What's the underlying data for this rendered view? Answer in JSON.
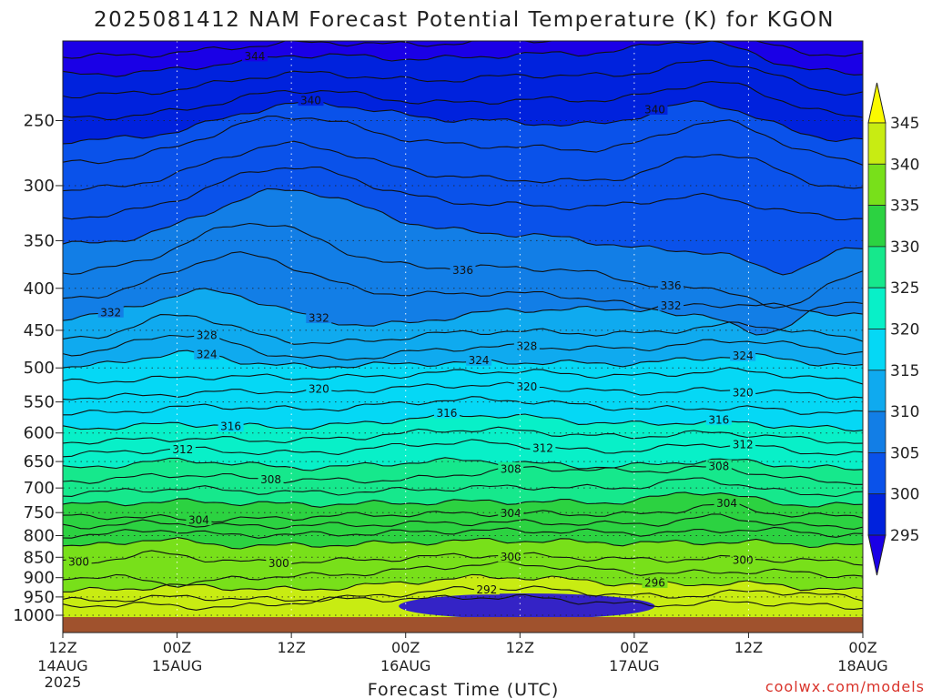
{
  "chart_data": {
    "type": "heatmap",
    "title": "2025081412 NAM Forecast Potential Temperature (K) for KGON",
    "xlabel": "Forecast Time (UTC)",
    "credit": "coolwx.com/models",
    "y_scale": "log-pressure",
    "y_ticks": [
      "250",
      "300",
      "350",
      "400",
      "450",
      "500",
      "550",
      "600",
      "650",
      "700",
      "750",
      "800",
      "850",
      "900",
      "950",
      "1000"
    ],
    "y_range": [
      200,
      1000
    ],
    "x_ticks": [
      {
        "time": "12Z",
        "date": "14AUG",
        "year": "2025"
      },
      {
        "time": "00Z",
        "date": "15AUG",
        "year": ""
      },
      {
        "time": "12Z",
        "date": "",
        "year": ""
      },
      {
        "time": "00Z",
        "date": "16AUG",
        "year": ""
      },
      {
        "time": "12Z",
        "date": "",
        "year": ""
      },
      {
        "time": "00Z",
        "date": "17AUG",
        "year": ""
      },
      {
        "time": "12Z",
        "date": "",
        "year": ""
      },
      {
        "time": "00Z",
        "date": "18AUG",
        "year": ""
      }
    ],
    "colorbar": {
      "levels": [
        295,
        300,
        305,
        310,
        315,
        320,
        325,
        330,
        335,
        340,
        345
      ],
      "colors": [
        "#1a00e6",
        "#0022dd",
        "#0a52ea",
        "#127ee6",
        "#0faaef",
        "#05d8f5",
        "#08f0c8",
        "#16e88c",
        "#2cd241",
        "#78e01a",
        "#c8ec12",
        "#fafa00"
      ]
    },
    "grid": "dotted",
    "contour_levels": [
      {
        "value": "292",
        "labels": [
          {
            "text": "292",
            "pos": 0.53
          }
        ]
      },
      {
        "value": "296",
        "labels": [
          {
            "text": "296",
            "pos": 0.74
          }
        ]
      },
      {
        "value": "300",
        "labels": [
          {
            "text": "300",
            "pos": 0.02
          },
          {
            "text": "300",
            "pos": 0.27
          },
          {
            "text": "300",
            "pos": 0.56
          },
          {
            "text": "300",
            "pos": 0.85
          }
        ]
      },
      {
        "value": "304",
        "labels": [
          {
            "text": "304",
            "pos": 0.17
          },
          {
            "text": "304",
            "pos": 0.56
          },
          {
            "text": "304",
            "pos": 0.83
          }
        ]
      },
      {
        "value": "308",
        "labels": [
          {
            "text": "308",
            "pos": 0.26
          },
          {
            "text": "308",
            "pos": 0.56
          },
          {
            "text": "308",
            "pos": 0.82
          }
        ]
      },
      {
        "value": "312",
        "labels": [
          {
            "text": "312",
            "pos": 0.15
          },
          {
            "text": "312",
            "pos": 0.6
          },
          {
            "text": "312",
            "pos": 0.85
          }
        ]
      },
      {
        "value": "316",
        "labels": [
          {
            "text": "316",
            "pos": 0.21
          },
          {
            "text": "316",
            "pos": 0.48
          },
          {
            "text": "316",
            "pos": 0.82
          }
        ]
      },
      {
        "value": "320",
        "labels": [
          {
            "text": "320",
            "pos": 0.32
          },
          {
            "text": "320",
            "pos": 0.58
          },
          {
            "text": "320",
            "pos": 0.85
          }
        ]
      },
      {
        "value": "324",
        "labels": [
          {
            "text": "324",
            "pos": 0.18
          },
          {
            "text": "324",
            "pos": 0.52
          },
          {
            "text": "324",
            "pos": 0.85
          }
        ]
      },
      {
        "value": "328",
        "labels": [
          {
            "text": "328",
            "pos": 0.18
          },
          {
            "text": "328",
            "pos": 0.58
          }
        ]
      },
      {
        "value": "332",
        "labels": [
          {
            "text": "332",
            "pos": 0.06
          },
          {
            "text": "332",
            "pos": 0.32
          },
          {
            "text": "332",
            "pos": 0.76
          }
        ]
      },
      {
        "value": "336",
        "labels": [
          {
            "text": "336",
            "pos": 0.5
          },
          {
            "text": "336",
            "pos": 0.76
          }
        ]
      },
      {
        "value": "340",
        "labels": [
          {
            "text": "340",
            "pos": 0.31
          },
          {
            "text": "340",
            "pos": 0.74
          }
        ]
      },
      {
        "value": "344",
        "labels": [
          {
            "text": "344",
            "pos": 0.24
          }
        ]
      }
    ],
    "terrain_color": "#a0522d"
  }
}
